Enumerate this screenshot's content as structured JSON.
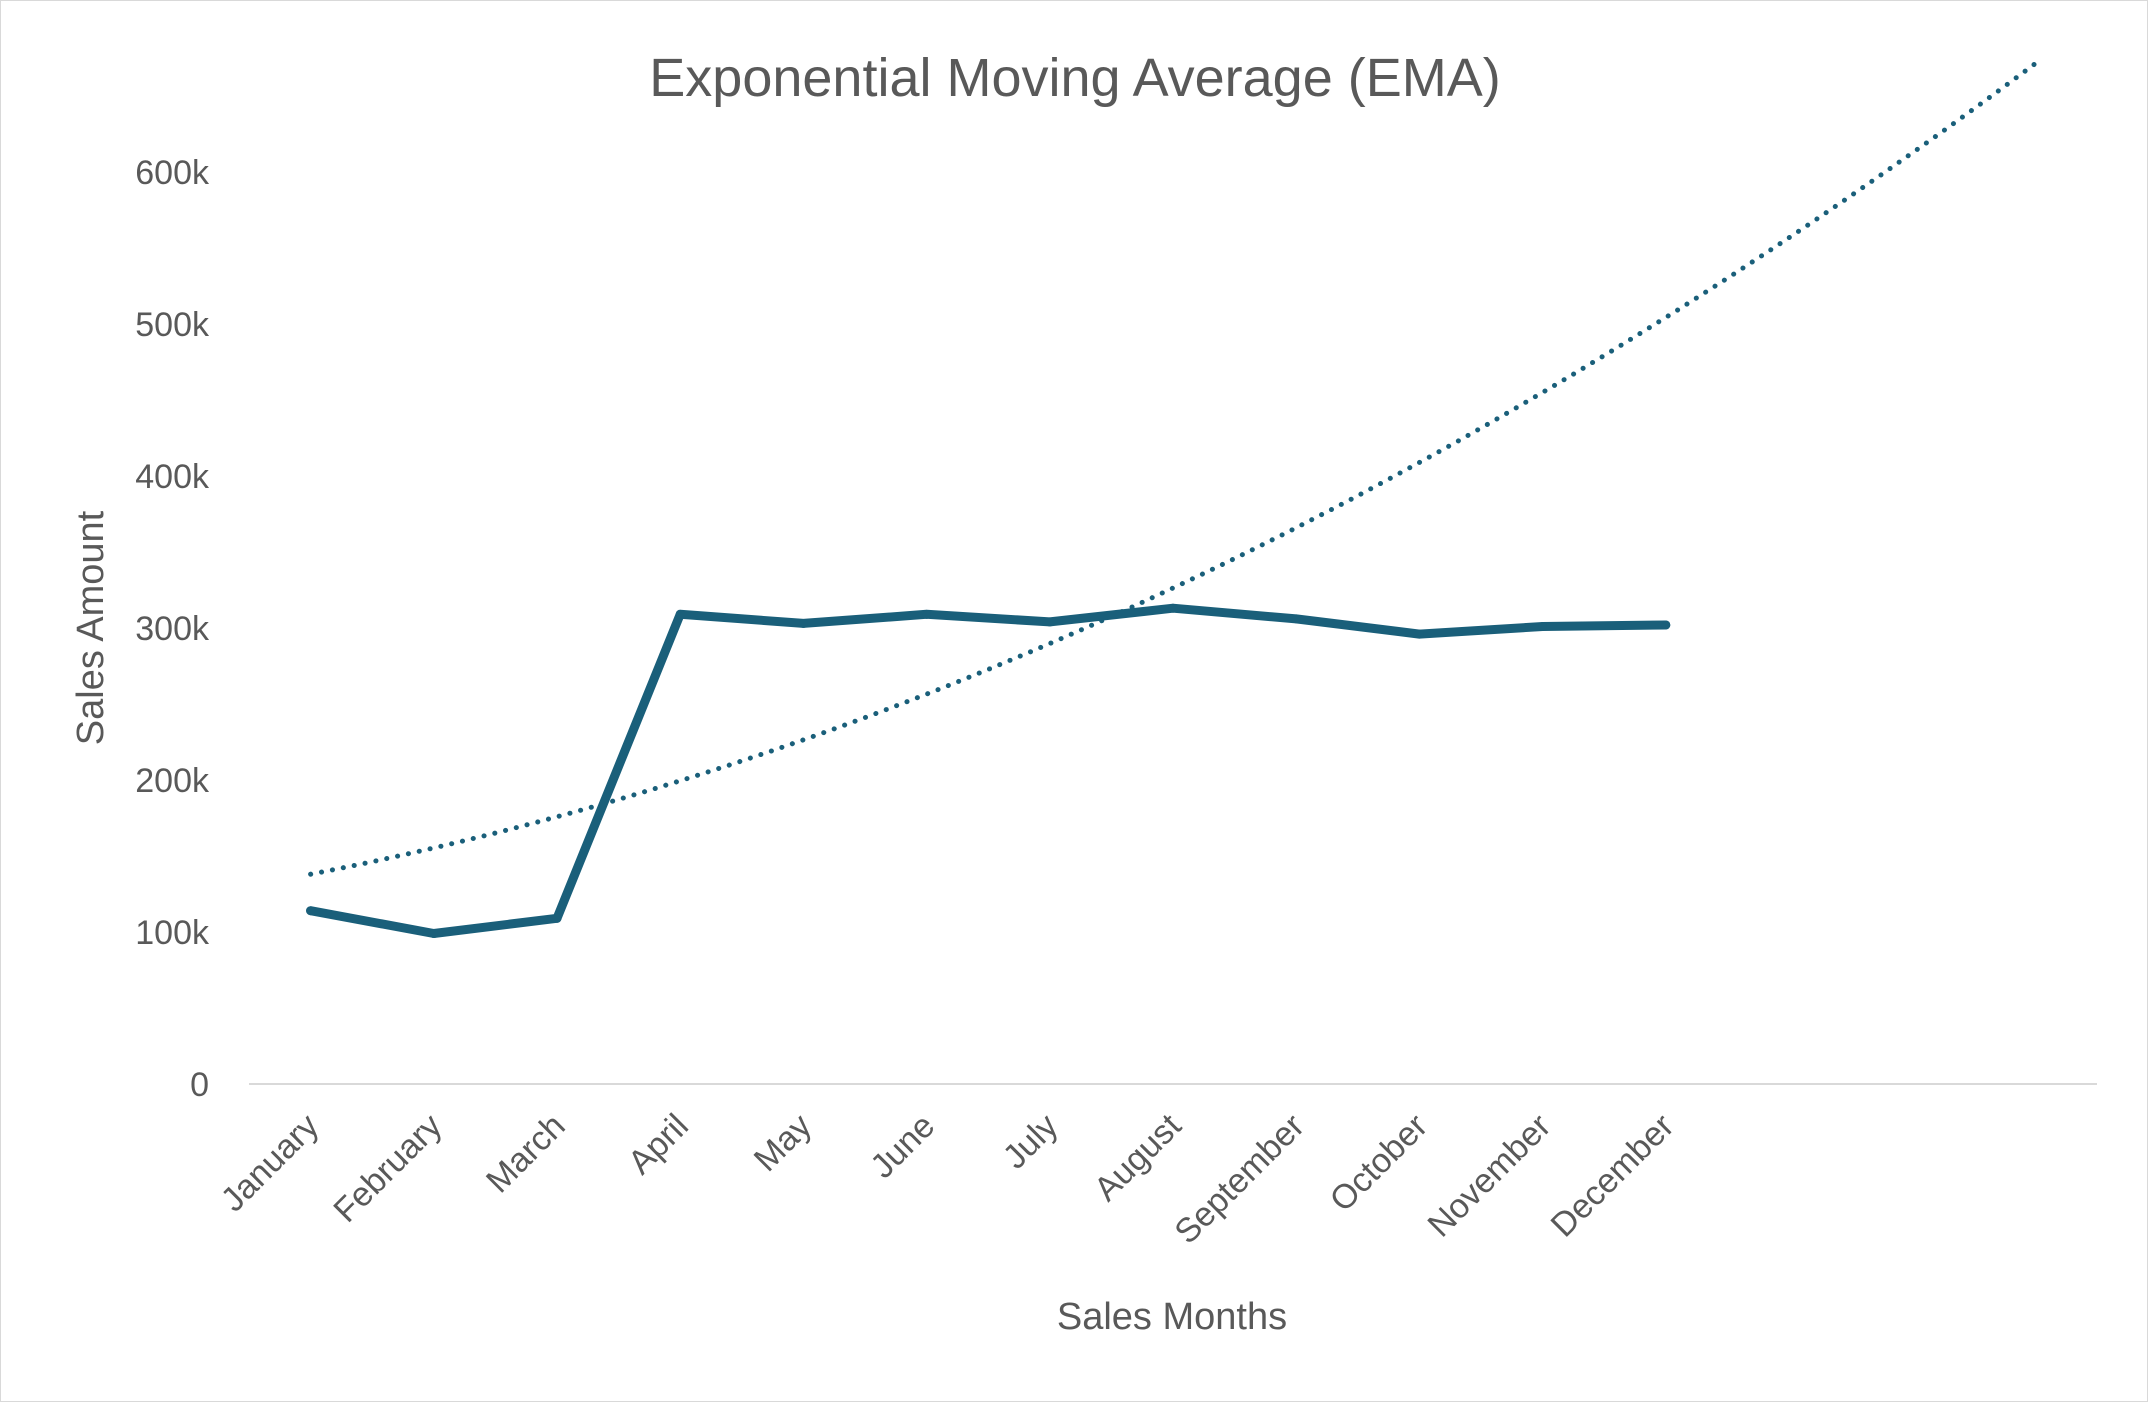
{
  "chart_data": {
    "type": "line",
    "title": "Exponential Moving Average (EMA)",
    "xlabel": "Sales Months",
    "ylabel": "Sales Amount",
    "categories": [
      "January",
      "February",
      "March",
      "April",
      "May",
      "June",
      "July",
      "August",
      "September",
      "October",
      "November",
      "December"
    ],
    "y_ticks": [
      {
        "value": 0,
        "label": "0"
      },
      {
        "value": 100000,
        "label": "100k"
      },
      {
        "value": 200000,
        "label": "200k"
      },
      {
        "value": 300000,
        "label": "300k"
      },
      {
        "value": 400000,
        "label": "400k"
      },
      {
        "value": 500000,
        "label": "500k"
      },
      {
        "value": 600000,
        "label": "600k"
      }
    ],
    "ylim": [
      0,
      600000
    ],
    "grid": false,
    "legend": "none",
    "series": [
      {
        "style": "solid",
        "color": "#1a5f7a",
        "values": [
          114000,
          99000,
          109000,
          309000,
          303000,
          309000,
          304000,
          313000,
          306000,
          296000,
          301000,
          302000
        ]
      }
    ],
    "trendline": {
      "type": "polynomial",
      "style": "dotted",
      "color": "#1a5f7a",
      "x_extends_to_category_position": 15,
      "coefficients_from_january": [
        138000,
        15700,
        1600
      ]
    }
  }
}
